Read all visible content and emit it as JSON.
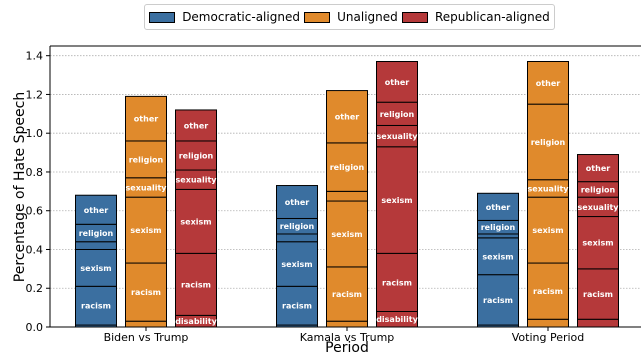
{
  "chart_data": {
    "type": "bar",
    "stacked": true,
    "xlabel": "Period",
    "ylabel": "Percentage of Hate Speech",
    "ylim": [
      0,
      1.45
    ],
    "yticks": [
      "0.0",
      "0.2",
      "0.4",
      "0.6",
      "0.8",
      "1.0",
      "1.2",
      "1.4"
    ],
    "grid": "horizontal dotted",
    "legend_position": "top-center",
    "categories": [
      "Biden vs Trump",
      "Kamala vs Trump",
      "Voting Period"
    ],
    "series": [
      {
        "name": "Democratic-aligned",
        "color": "#3b6fa0"
      },
      {
        "name": "Unaligned",
        "color": "#e08a2c"
      },
      {
        "name": "Republican-aligned",
        "color": "#b5393a"
      }
    ],
    "segments_order": [
      "disability",
      "racism",
      "sexism",
      "sexuality",
      "religion",
      "other"
    ],
    "stacks": {
      "Democratic-aligned": [
        {
          "disability": 0.01,
          "racism": 0.2,
          "sexism": 0.19,
          "sexuality": 0.04,
          "religion": 0.09,
          "other": 0.15
        },
        {
          "disability": 0.01,
          "racism": 0.2,
          "sexism": 0.23,
          "sexuality": 0.04,
          "religion": 0.08,
          "other": 0.17
        },
        {
          "disability": 0.01,
          "racism": 0.26,
          "sexism": 0.19,
          "sexuality": 0.02,
          "religion": 0.07,
          "other": 0.14
        }
      ],
      "Unaligned": [
        {
          "disability": 0.03,
          "racism": 0.3,
          "sexism": 0.34,
          "sexuality": 0.1,
          "religion": 0.19,
          "other": 0.23
        },
        {
          "disability": 0.03,
          "racism": 0.28,
          "sexism": 0.34,
          "sexuality": 0.05,
          "religion": 0.25,
          "other": 0.27
        },
        {
          "disability": 0.04,
          "racism": 0.29,
          "sexism": 0.34,
          "sexuality": 0.09,
          "religion": 0.39,
          "other": 0.22
        }
      ],
      "Republican-aligned": [
        {
          "disability": 0.06,
          "racism": 0.32,
          "sexism": 0.33,
          "sexuality": 0.1,
          "religion": 0.15,
          "other": 0.16
        },
        {
          "disability": 0.08,
          "racism": 0.3,
          "sexism": 0.55,
          "sexuality": 0.11,
          "religion": 0.12,
          "other": 0.21
        },
        {
          "disability": 0.04,
          "racism": 0.26,
          "sexism": 0.27,
          "sexuality": 0.1,
          "religion": 0.08,
          "other": 0.14
        }
      ]
    }
  }
}
